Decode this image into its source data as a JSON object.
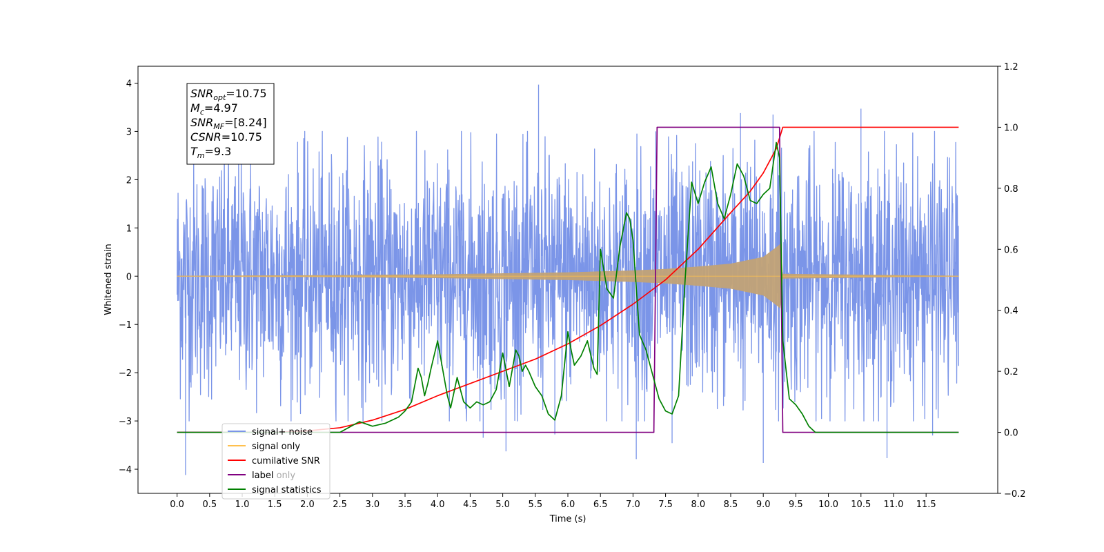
{
  "chart_data": {
    "type": "line",
    "xlabel": "Time (s)",
    "ylabel": "Whitened strain",
    "xlim": [
      -0.6,
      12.6
    ],
    "ylim": [
      -4.5,
      4.35
    ],
    "y2lim": [
      -0.2,
      1.2
    ],
    "x_ticks": [
      0.0,
      0.5,
      1.0,
      1.5,
      2.0,
      2.5,
      3.0,
      3.5,
      4.0,
      4.5,
      5.0,
      5.5,
      6.0,
      6.5,
      7.0,
      7.5,
      8.0,
      8.5,
      9.0,
      9.5,
      10.0,
      10.5,
      11.0,
      11.5
    ],
    "x_tick_labels": [
      "0.0",
      "0.5",
      "1.0",
      "1.5",
      "2.0",
      "2.5",
      "3.0",
      "3.5",
      "4.0",
      "4.5",
      "5.0",
      "5.5",
      "6.0",
      "6.5",
      "7.0",
      "7.5",
      "8.0",
      "8.5",
      "9.0",
      "9.5",
      "10.0",
      "10.5",
      "11.0",
      "11.5"
    ],
    "y_ticks": [
      -4,
      -3,
      -2,
      -1,
      0,
      1,
      2,
      3,
      4
    ],
    "y_tick_labels": [
      "−4",
      "−3",
      "−2",
      "−1",
      "0",
      "1",
      "2",
      "3",
      "4"
    ],
    "y2_ticks": [
      -0.2,
      0.0,
      0.2,
      0.4,
      0.6,
      0.8,
      1.0,
      1.2
    ],
    "y2_tick_labels": [
      "−0.2",
      "0.0",
      "0.2",
      "0.4",
      "0.6",
      "0.8",
      "1.0",
      "1.2"
    ],
    "legend_position": "lower-left",
    "grid": false,
    "info_box": {
      "snr_opt": {
        "base": "SNR",
        "sub": "opt",
        "value": "=10.75"
      },
      "mc": {
        "base": "M",
        "sub": "c",
        "value": "=4.97"
      },
      "snr_mf": {
        "base": "SNR",
        "sub": "MF",
        "value": "=[8.24]"
      },
      "csnr": {
        "base": "CSNR",
        "value": "=10.75"
      },
      "tm": {
        "base": "T",
        "sub": "m",
        "value": "=9.3"
      }
    },
    "series": [
      {
        "name": "signal+ noise",
        "axis": "left",
        "color": "#7b95e8",
        "kind": "noise_band",
        "x_range": [
          0.0,
          12.0
        ],
        "typical_amplitude": 1.3,
        "peaks": [
          [
            5.55,
            3.97
          ],
          [
            0.13,
            -4.12
          ],
          [
            9.0,
            -3.87
          ],
          [
            7.05,
            -3.79
          ],
          [
            5.05,
            -3.63
          ],
          [
            7.6,
            -3.46
          ],
          [
            10.9,
            -3.77
          ],
          [
            4.7,
            -3.35
          ],
          [
            5.8,
            -3.28
          ],
          [
            11.6,
            -3.3
          ],
          [
            8.65,
            3.38
          ],
          [
            10.5,
            3.47
          ],
          [
            9.15,
            3.35
          ],
          [
            7.35,
            3.0
          ]
        ]
      },
      {
        "name": "signal only",
        "axis": "left",
        "color": "#ffc04d",
        "kind": "chirp",
        "x_range": [
          0.0,
          12.0
        ],
        "merger_time": 9.3,
        "envelope": [
          [
            0.0,
            0.01
          ],
          [
            1.0,
            0.015
          ],
          [
            2.0,
            0.02
          ],
          [
            3.0,
            0.03
          ],
          [
            4.0,
            0.04
          ],
          [
            5.0,
            0.06
          ],
          [
            6.0,
            0.08
          ],
          [
            7.0,
            0.12
          ],
          [
            7.5,
            0.15
          ],
          [
            8.0,
            0.2
          ],
          [
            8.5,
            0.26
          ],
          [
            9.0,
            0.4
          ],
          [
            9.2,
            0.6
          ],
          [
            9.27,
            0.68
          ],
          [
            9.3,
            0.05
          ],
          [
            12.0,
            0.01
          ]
        ]
      },
      {
        "name": "cumilative SNR",
        "axis": "right",
        "color": "#ff0000",
        "kind": "line",
        "x": [
          0.0,
          1.5,
          2.0,
          2.5,
          3.0,
          3.5,
          4.0,
          4.5,
          5.0,
          5.5,
          6.0,
          6.5,
          7.0,
          7.5,
          8.0,
          8.5,
          8.8,
          9.0,
          9.1,
          9.2,
          9.3,
          12.0
        ],
        "y": [
          0.0,
          0.0,
          0.005,
          0.015,
          0.04,
          0.075,
          0.12,
          0.16,
          0.2,
          0.24,
          0.29,
          0.35,
          0.42,
          0.5,
          0.6,
          0.72,
          0.79,
          0.85,
          0.89,
          0.93,
          1.0,
          1.0
        ]
      },
      {
        "name": "label only",
        "axis": "right",
        "color": "#ffa500",
        "kind": "hidden",
        "x": [],
        "y": []
      },
      {
        "name": "label",
        "axis": "right",
        "color": "#800080",
        "kind": "line",
        "x": [
          0.0,
          7.32,
          7.37,
          9.25,
          9.3,
          12.0
        ],
        "y": [
          0.0,
          0.0,
          1.0,
          1.0,
          0.0,
          0.0
        ]
      },
      {
        "name": "signal statistics",
        "axis": "right",
        "color": "#008000",
        "kind": "line",
        "x": [
          0.0,
          2.5,
          2.8,
          3.0,
          3.2,
          3.4,
          3.5,
          3.6,
          3.7,
          3.75,
          3.8,
          3.85,
          3.9,
          4.0,
          4.1,
          4.15,
          4.2,
          4.3,
          4.4,
          4.5,
          4.6,
          4.7,
          4.8,
          4.9,
          5.0,
          5.1,
          5.2,
          5.25,
          5.3,
          5.35,
          5.4,
          5.5,
          5.6,
          5.7,
          5.8,
          5.9,
          6.0,
          6.05,
          6.1,
          6.2,
          6.3,
          6.4,
          6.45,
          6.5,
          6.6,
          6.7,
          6.8,
          6.9,
          6.95,
          7.0,
          7.1,
          7.2,
          7.3,
          7.4,
          7.5,
          7.6,
          7.7,
          7.8,
          7.9,
          8.0,
          8.1,
          8.2,
          8.3,
          8.4,
          8.5,
          8.6,
          8.7,
          8.8,
          8.9,
          9.0,
          9.1,
          9.2,
          9.25,
          9.3,
          9.4,
          9.5,
          9.6,
          9.7,
          9.8,
          9.9,
          10.0,
          12.0
        ],
        "y": [
          0.0,
          0.0,
          0.035,
          0.02,
          0.03,
          0.05,
          0.07,
          0.1,
          0.21,
          0.18,
          0.12,
          0.16,
          0.21,
          0.3,
          0.18,
          0.12,
          0.08,
          0.18,
          0.1,
          0.08,
          0.1,
          0.09,
          0.1,
          0.14,
          0.26,
          0.15,
          0.27,
          0.25,
          0.2,
          0.22,
          0.2,
          0.15,
          0.12,
          0.06,
          0.04,
          0.12,
          0.33,
          0.27,
          0.22,
          0.25,
          0.3,
          0.21,
          0.19,
          0.6,
          0.47,
          0.44,
          0.61,
          0.72,
          0.7,
          0.63,
          0.32,
          0.27,
          0.19,
          0.11,
          0.07,
          0.06,
          0.12,
          0.5,
          0.82,
          0.75,
          0.82,
          0.87,
          0.75,
          0.7,
          0.78,
          0.88,
          0.84,
          0.76,
          0.75,
          0.78,
          0.8,
          0.95,
          0.9,
          0.3,
          0.11,
          0.09,
          0.06,
          0.02,
          0.0,
          0.0,
          0.0,
          0.0
        ]
      }
    ]
  }
}
